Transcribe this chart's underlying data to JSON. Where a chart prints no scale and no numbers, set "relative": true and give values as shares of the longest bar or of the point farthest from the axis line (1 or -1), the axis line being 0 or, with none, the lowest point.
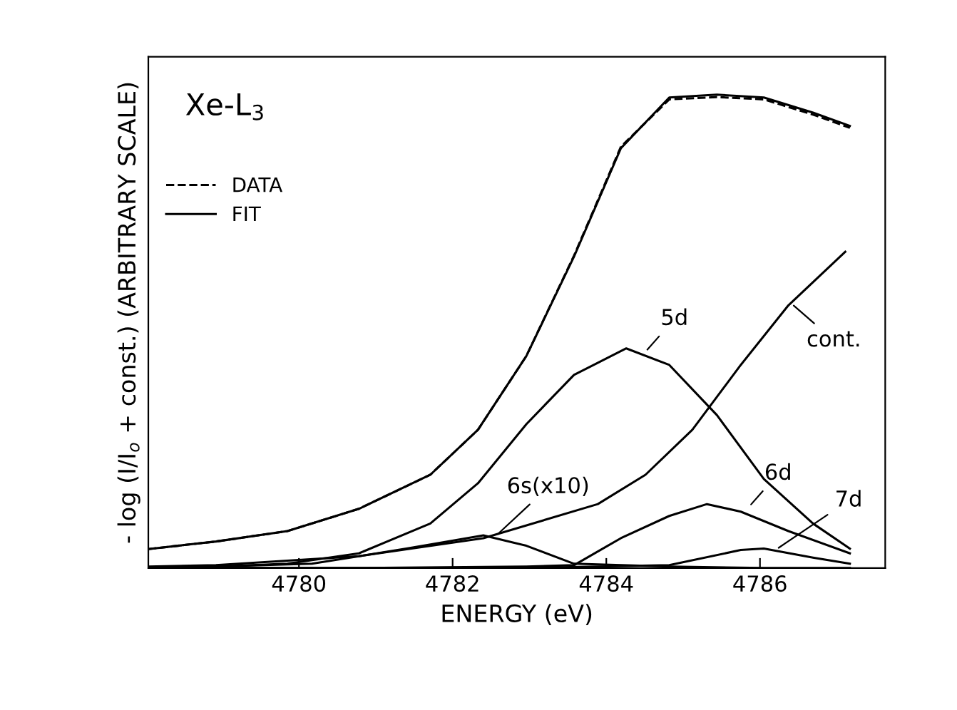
{
  "chart_data": {
    "type": "line",
    "relative": true,
    "title": "Xe-L$_{3}$",
    "xlabel": "ENERGY (eV)",
    "ylabel": "- log (I/I$_{o}$ + const.) (ARBITRARY SCALE)",
    "xlim": [
      4778.04,
      4787.63
    ],
    "xticks": [
      4780,
      4782,
      4784,
      4786
    ],
    "legend": "top left",
    "grid": false,
    "series": [
      {
        "name": "DATA",
        "color": "#000000",
        "line_style": "dashed",
        "x": [
          4778.04,
          4778.92,
          4779.85,
          4780.78,
          4781.71,
          4782.33,
          4782.96,
          4783.58,
          4784.19,
          4784.82,
          4785.44,
          4786.05,
          4786.69,
          4787.17
        ],
        "values": [
          0.04,
          0.056,
          0.078,
          0.125,
          0.197,
          0.292,
          0.448,
          0.66,
          0.89,
          0.99,
          0.995,
          0.99,
          0.958,
          0.93
        ]
      },
      {
        "name": "FIT",
        "color": "#000000",
        "line_style": "solid",
        "x": [
          4778.04,
          4778.92,
          4779.85,
          4780.78,
          4781.71,
          4782.33,
          4782.96,
          4783.58,
          4784.19,
          4784.82,
          4785.44,
          4786.05,
          4786.69,
          4787.17
        ],
        "values": [
          0.04,
          0.056,
          0.078,
          0.125,
          0.197,
          0.292,
          0.448,
          0.658,
          0.887,
          0.994,
          1.0,
          0.994,
          0.962,
          0.934
        ]
      },
      {
        "color": "#000000",
        "line_style": "solid",
        "x": [
          4778.04,
          4778.92,
          4779.85,
          4780.78,
          4781.71,
          4782.33,
          4782.96,
          4783.58,
          4784.26,
          4784.82,
          4785.44,
          4786.05,
          4786.69,
          4787.17
        ],
        "values": [
          0.0,
          0.003,
          0.009,
          0.031,
          0.094,
          0.179,
          0.304,
          0.408,
          0.464,
          0.429,
          0.323,
          0.188,
          0.094,
          0.041
        ]
      },
      {
        "color": "#000000",
        "line_style": "solid",
        "x": [
          4778.04,
          4778.92,
          4780.78,
          4782.4,
          4783.89,
          4784.51,
          4785.12,
          4785.75,
          4786.37,
          4787.11
        ],
        "values": [
          0.003,
          0.006,
          0.025,
          0.063,
          0.135,
          0.197,
          0.292,
          0.429,
          0.555,
          0.668
        ]
      },
      {
        "color": "#000000",
        "line_style": "solid",
        "x": [
          4778.04,
          4778.92,
          4780.17,
          4781.4,
          4782.4,
          4782.96,
          4783.58,
          4784.82,
          4786.05,
          4787.17
        ],
        "values": [
          0.0,
          0.003,
          0.009,
          0.041,
          0.069,
          0.047,
          0.009,
          0.003,
          0.0,
          0.0
        ]
      },
      {
        "color": "#000000",
        "line_style": "solid",
        "x": [
          4778.04,
          4780.78,
          4782.96,
          4783.58,
          4784.19,
          4784.82,
          4785.31,
          4785.75,
          4786.37,
          4787.17
        ],
        "values": [
          0.0,
          0.0,
          0.003,
          0.006,
          0.063,
          0.11,
          0.135,
          0.119,
          0.078,
          0.031
        ]
      },
      {
        "color": "#000000",
        "line_style": "solid",
        "x": [
          4778.04,
          4782.96,
          4784.82,
          4785.75,
          4786.05,
          4786.69,
          4787.17
        ],
        "values": [
          0.0,
          0.0,
          0.006,
          0.038,
          0.041,
          0.022,
          0.009
        ]
      }
    ],
    "annotations": [
      {
        "text": "5d",
        "x": 4784.5,
        "y": 0.455
      },
      {
        "text": "6s(x10)",
        "x": 4782.55,
        "y": 0.066
      },
      {
        "text": "cont.",
        "x": 4786.4,
        "y": 0.56
      },
      {
        "text": "6d",
        "x": 4785.85,
        "y": 0.128
      },
      {
        "text": "7d",
        "x": 4786.2,
        "y": 0.038
      }
    ]
  }
}
